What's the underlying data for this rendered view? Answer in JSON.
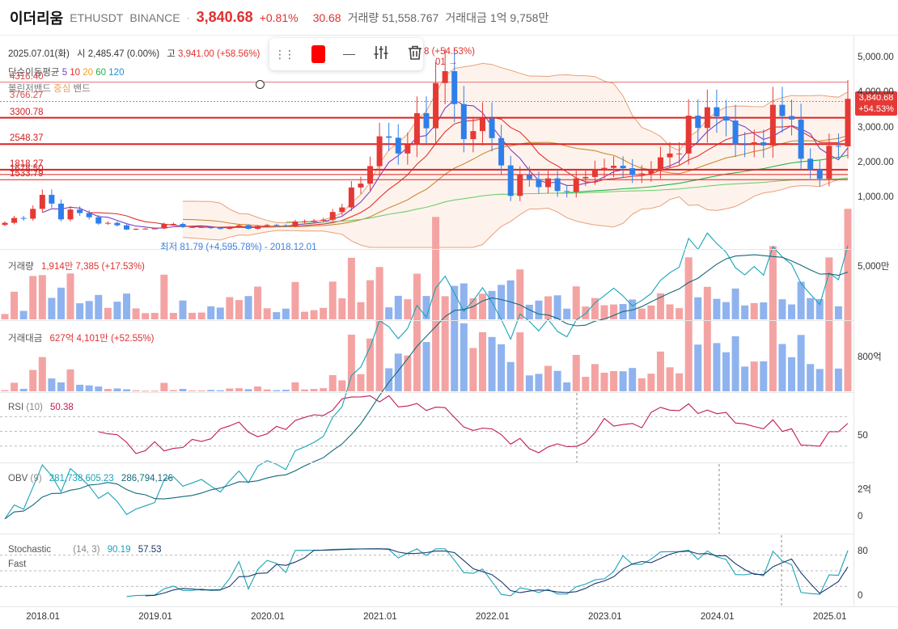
{
  "header": {
    "name": "이더리움",
    "symbol": "ETHUSDT",
    "exchange": "BINANCE",
    "price": "3,840.68",
    "change_pct": "+0.81%",
    "change_abs": "30.68",
    "volume_label": "거래량",
    "volume_value": "51,558.767",
    "amount_label": "거래대금",
    "amount_value": "1억 9,758만"
  },
  "ohlc": {
    "date": "2025.07.01(화)",
    "open_label": "시",
    "open": "2,485.47 (0.00%)",
    "high_label": "고",
    "high": "3,941.00 (+58.56%)",
    "close_tail": "8 (+54.53%)"
  },
  "indicators": {
    "ma_label": "단순이동평균",
    "ma_periods": [
      "5",
      "10",
      "20",
      "60",
      "120"
    ],
    "ma_colors": [
      "#7b3fc7",
      "#e0302e",
      "#f0a020",
      "#22b34a",
      "#1f8fd0"
    ],
    "bb_label": "볼린저밴드",
    "bb_center": "중심",
    "bb_band": "밴드",
    "max_label_tail": "01 →",
    "min_label": "최저 81.79 (+4,595.78%) - 2018.12.01"
  },
  "hlines": [
    {
      "value": 4316.4,
      "label": "4316.40",
      "color": "#e57373"
    },
    {
      "value": 3766.27,
      "label": "3766.27",
      "color": "#e57373",
      "dotted": true
    },
    {
      "value": 3300.78,
      "label": "3300.78",
      "color": "#e02020",
      "thick": true
    },
    {
      "value": 2548.37,
      "label": "2548.37",
      "color": "#e02020",
      "thick": true
    },
    {
      "value": 1818.27,
      "label": "1818.27",
      "color": "#e02020",
      "thick": true
    },
    {
      "value": 1678.5,
      "label": "1678.50",
      "color": "#e02020"
    },
    {
      "value": 1533.79,
      "label": "1533.79",
      "color": "#e02020"
    }
  ],
  "price_tag": {
    "price": "3,840.68",
    "pct": "+54.53%"
  },
  "panels": {
    "volume": {
      "label": "거래량",
      "value": "1,914만 7,385",
      "pct": "(+17.53%)",
      "axis": "5,000만"
    },
    "amount": {
      "label": "거래대금",
      "value": "627억 4,101만",
      "pct": "(+52.55%)",
      "axis": "800억"
    },
    "rsi": {
      "label": "RSI",
      "param": "(10)",
      "value": "50.38",
      "axis": "50"
    },
    "obv": {
      "label": "OBV",
      "param": "(9)",
      "value1": "281,738,605.23",
      "value2": "286,794,126",
      "axis_top": "2억",
      "axis_zero": "0"
    },
    "stoch": {
      "label": "Stochastic",
      "label2": "Fast",
      "param": "(14, 3)",
      "k": "90.19",
      "d": "57.53",
      "axis_top": "80",
      "axis_zero": "0"
    }
  },
  "price_axis": [
    "5,000.00",
    "4,000.00",
    "3,000.00",
    "2,000.00",
    "1,000.00"
  ],
  "toolbar": {
    "color": "#ff0000"
  },
  "chart_data": {
    "type": "candlestick",
    "interval": "monthly",
    "title": "이더리움 ETHUSDT BINANCE",
    "x_ticks": [
      "2018.01",
      "2019.01",
      "2020.01",
      "2021.01",
      "2022.01",
      "2023.01",
      "2024.01",
      "2025.01"
    ],
    "y_ticks": [
      5000,
      4000,
      3000,
      2000,
      1000
    ],
    "ylim": [
      -400,
      5600
    ],
    "x_start": "2017.09",
    "closes": [
      302,
      440,
      420,
      700,
      1100,
      850,
      400,
      680,
      580,
      460,
      280,
      300,
      230,
      110,
      130,
      135,
      140,
      270,
      270,
      180,
      180,
      180,
      150,
      130,
      180,
      230,
      130,
      210,
      240,
      230,
      200,
      340,
      345,
      360,
      390,
      610,
      740,
      1310,
      1420,
      1920,
      2770,
      2730,
      2280,
      2530,
      3430,
      3000,
      4290,
      4630,
      3690,
      2690,
      2920,
      3280,
      2720,
      1940,
      1070,
      1680,
      1550,
      1320,
      1570,
      1210,
      1190,
      1570,
      1610,
      1820,
      1870,
      1930,
      1860,
      1670,
      1710,
      1810,
      2170,
      2280,
      2280,
      3360,
      3010,
      3600,
      3340,
      3220,
      2540,
      2530,
      2600,
      2510,
      3670,
      3350,
      3250,
      2130,
      1820,
      1560,
      2500,
      2485,
      3840
    ],
    "series": [
      {
        "name": "5",
        "type": "ma"
      },
      {
        "name": "10",
        "type": "ma"
      },
      {
        "name": "20",
        "type": "ma"
      },
      {
        "name": "60",
        "type": "ma"
      },
      {
        "name": "120",
        "type": "ma"
      }
    ],
    "volume_panel": {
      "ylim": [
        0,
        9000
      ],
      "axis_tick": 5000
    },
    "amount_panel": {
      "ylim": [
        0,
        1600
      ],
      "axis_tick": 800
    },
    "rsi_panel": {
      "ylim": [
        10,
        100
      ],
      "guides": [
        30,
        50,
        70
      ]
    },
    "obv_panel": {
      "ylim": [
        -1.3,
        5.3
      ],
      "axis_ticks": [
        0,
        2
      ]
    },
    "stoch_panel": {
      "ylim": [
        -15,
        115
      ],
      "guides": [
        20,
        50,
        80
      ]
    }
  }
}
